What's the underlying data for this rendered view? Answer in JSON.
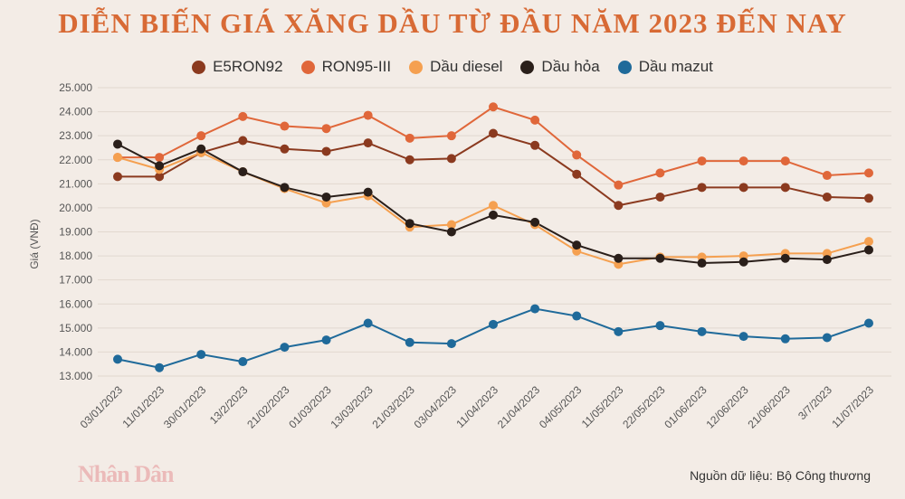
{
  "chart_data": {
    "type": "line",
    "title": "DIỄN BIẾN GIÁ XĂNG DẦU TỪ ĐẦU NĂM 2023 ĐẾN NAY",
    "ylabel": "Giá (VNĐ)",
    "xlabel": "",
    "ylim": [
      13000,
      25000
    ],
    "yticks": [
      "13.000",
      "14.000",
      "15.000",
      "16.000",
      "17.000",
      "18.000",
      "19.000",
      "20.000",
      "21.000",
      "22.000",
      "23.000",
      "24.000",
      "25.000"
    ],
    "categories": [
      "03/01/2023",
      "11/01/2023",
      "30/01/2023",
      "13/2/2023",
      "21/02/2023",
      "01/03/2023",
      "13/03/2023",
      "21/03/2023",
      "03/04/2023",
      "11/04/2023",
      "21/04/2023",
      "04/05/2023",
      "11/05/2023",
      "22/05/2023",
      "01/06/2023",
      "12/06/2023",
      "21/06/2023",
      "3/7/2023",
      "11/07/2023"
    ],
    "legend_position": "top-center",
    "grid": true,
    "series": [
      {
        "name": "E5RON92",
        "color": "#8b3a1f",
        "values": [
          21300,
          21300,
          22300,
          22800,
          22450,
          22350,
          22700,
          22000,
          22050,
          23100,
          22600,
          21400,
          20100,
          20450,
          20850,
          20850,
          20850,
          20450,
          20400
        ]
      },
      {
        "name": "RON95-III",
        "color": "#e0673a",
        "values": [
          22100,
          22100,
          23000,
          23800,
          23400,
          23300,
          23850,
          22900,
          23000,
          24200,
          23650,
          22200,
          20950,
          21450,
          21950,
          21950,
          21950,
          21350,
          21450
        ]
      },
      {
        "name": "Dầu diesel",
        "color": "#f5a050",
        "values": [
          22100,
          21600,
          22300,
          21500,
          20800,
          20200,
          20500,
          19200,
          19300,
          20100,
          19300,
          18200,
          17650,
          17950,
          17950,
          18000,
          18100,
          18100,
          18600
        ]
      },
      {
        "name": "Dầu hỏa",
        "color": "#2a1f1a",
        "values": [
          22650,
          21750,
          22450,
          21500,
          20850,
          20450,
          20650,
          19350,
          19000,
          19700,
          19400,
          18450,
          17900,
          17900,
          17700,
          17750,
          17900,
          17850,
          18250
        ]
      },
      {
        "name": "Dầu mazut",
        "color": "#1f6a9a",
        "values": [
          13700,
          13350,
          13900,
          13600,
          14200,
          14500,
          15200,
          14400,
          14350,
          15150,
          15800,
          15500,
          14850,
          15100,
          14850,
          14650,
          14550,
          14600,
          15200
        ]
      }
    ]
  },
  "footer": {
    "source": "Nguồn dữ liệu: Bộ Công thương",
    "watermark": "Nhân Dân"
  }
}
